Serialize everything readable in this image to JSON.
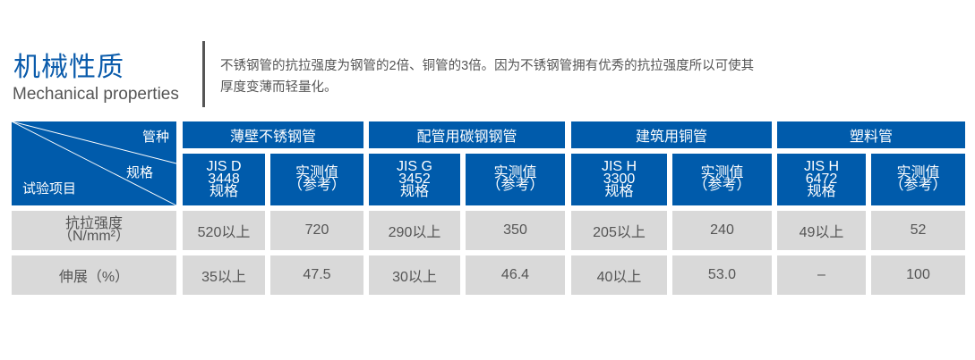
{
  "header": {
    "title": "机械性质",
    "subtitle": "Mechanical properties",
    "description_line1": "不锈钢管的抗拉强度为钢管的2倍、铜管的3倍。因为不锈钢管拥有优秀的抗拉强度所以可使其",
    "description_line2": "厚度变薄而轻量化。"
  },
  "table": {
    "corner": {
      "pipe_type": "管种",
      "spec": "规格",
      "test_item": "试验项目"
    },
    "groups": [
      {
        "name": "薄壁不锈钢管",
        "spec": [
          "JIS D",
          "3448",
          "规格"
        ],
        "measured": [
          "实测值",
          "（参考）"
        ]
      },
      {
        "name": "配管用碳钢钢管",
        "spec": [
          "JIS G",
          "3452",
          "规格"
        ],
        "measured": [
          "实测值",
          "（参考）"
        ]
      },
      {
        "name": "建筑用铜管",
        "spec": [
          "JIS H",
          "3300",
          "规格"
        ],
        "measured": [
          "实测值",
          "（参考）"
        ]
      },
      {
        "name": "塑料管",
        "spec": [
          "JIS H",
          "6472",
          "规格"
        ],
        "measured": [
          "实测值",
          "（参考）"
        ]
      }
    ],
    "rows": [
      {
        "label": [
          "抗拉强度",
          "（N/mm²）"
        ],
        "values": [
          "520以上",
          "720",
          "290以上",
          "350",
          "205以上",
          "240",
          "49以上",
          "52"
        ]
      },
      {
        "label": [
          "伸展（%）"
        ],
        "values": [
          "35以上",
          "47.5",
          "30以上",
          "46.4",
          "40以上",
          "53.0",
          "–",
          "100"
        ]
      }
    ]
  },
  "colors": {
    "header_blue": "#005bab",
    "row_grey": "#d9d9d9",
    "title_blue": "#0a5bab"
  }
}
